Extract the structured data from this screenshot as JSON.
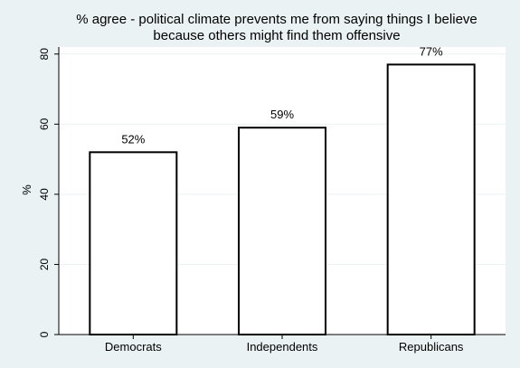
{
  "chart_data": {
    "type": "bar",
    "title_lines": [
      "% agree - political climate prevents me from saying things I believe",
      "because others might find them offensive"
    ],
    "xlabel": "",
    "ylabel": "%",
    "categories": [
      "Democrats",
      "Independents",
      "Republicans"
    ],
    "values": [
      52,
      59,
      77
    ],
    "data_labels": [
      "52%",
      "59%",
      "77%"
    ],
    "yticks": [
      0,
      20,
      40,
      60,
      80
    ],
    "ytick_labels": [
      "0",
      "20",
      "40",
      "60",
      "80"
    ],
    "ylim": [
      0,
      82
    ],
    "grid": true,
    "bar_fill": "#ffffff",
    "bar_stroke": "#000000",
    "plot_background": "#ffffff",
    "figure_background": "#eaf2f3"
  }
}
